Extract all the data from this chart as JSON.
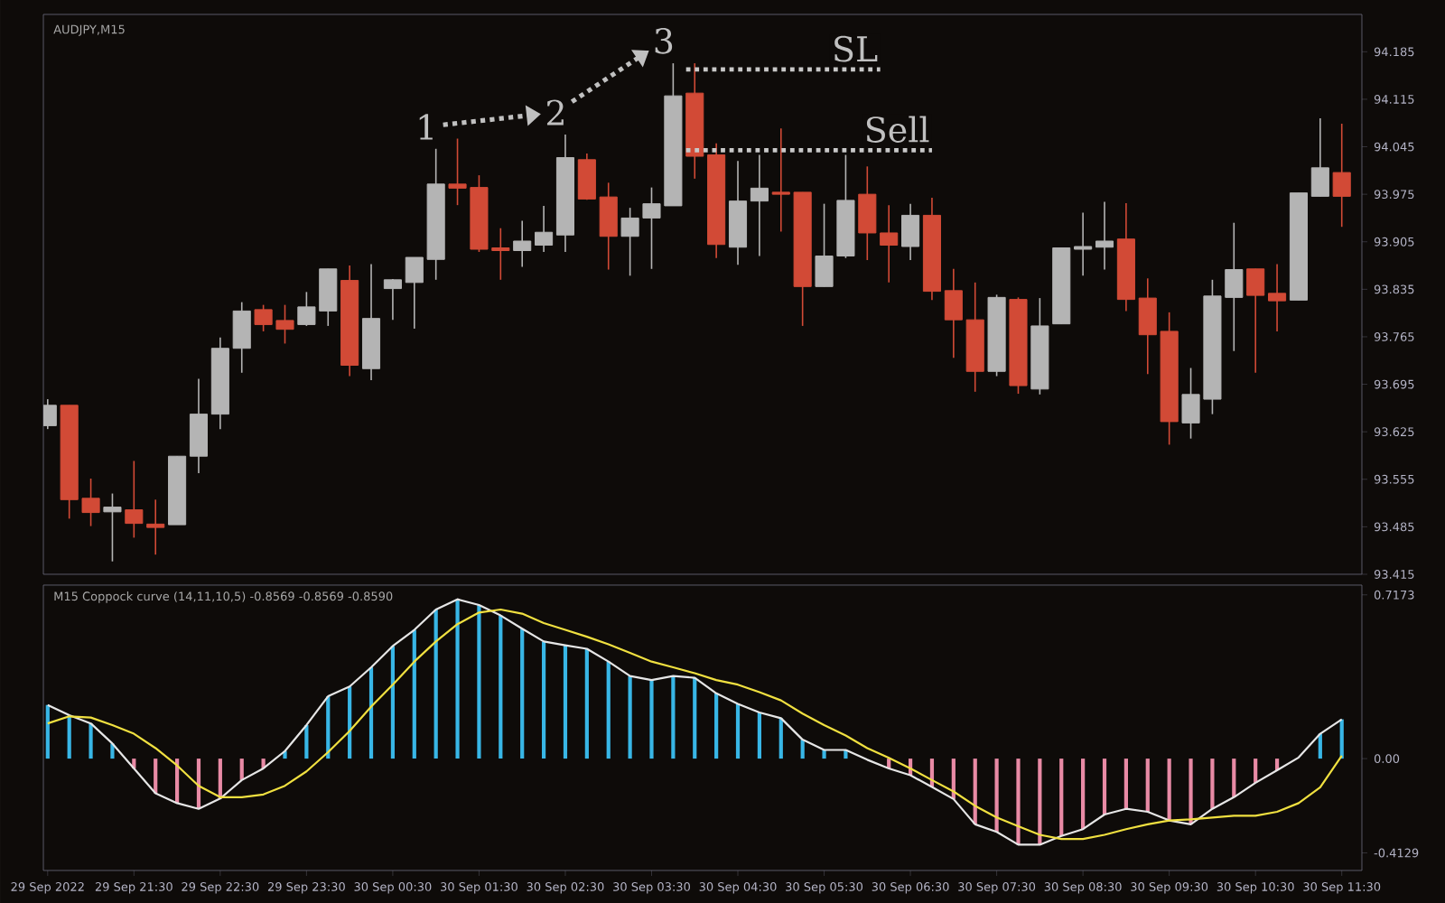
{
  "chart_data": [
    {
      "type": "candlestick",
      "title": "AUDJPY,M15",
      "x": [
        "2022-09-29T20:30",
        "2022-09-29T20:45",
        "2022-09-29T21:00",
        "2022-09-29T21:15",
        "2022-09-29T21:30",
        "2022-09-29T21:45",
        "2022-09-29T22:00",
        "2022-09-29T22:15",
        "2022-09-29T22:30",
        "2022-09-29T22:45",
        "2022-09-29T23:00",
        "2022-09-29T23:15",
        "2022-09-29T23:30",
        "2022-09-29T23:45",
        "2022-09-30T00:00",
        "2022-09-30T00:15",
        "2022-09-30T00:30",
        "2022-09-30T00:45",
        "2022-09-30T01:00",
        "2022-09-30T01:15",
        "2022-09-30T01:30",
        "2022-09-30T01:45",
        "2022-09-30T02:00",
        "2022-09-30T02:15",
        "2022-09-30T02:30",
        "2022-09-30T02:45",
        "2022-09-30T03:00",
        "2022-09-30T03:15",
        "2022-09-30T03:30",
        "2022-09-30T03:45",
        "2022-09-30T04:00",
        "2022-09-30T04:15",
        "2022-09-30T04:30",
        "2022-09-30T04:45",
        "2022-09-30T05:00",
        "2022-09-30T05:15",
        "2022-09-30T05:30",
        "2022-09-30T05:45",
        "2022-09-30T06:00",
        "2022-09-30T06:15",
        "2022-09-30T06:30",
        "2022-09-30T06:45",
        "2022-09-30T07:00",
        "2022-09-30T07:15",
        "2022-09-30T07:30",
        "2022-09-30T07:45",
        "2022-09-30T08:00",
        "2022-09-30T08:15",
        "2022-09-30T08:30",
        "2022-09-30T08:45",
        "2022-09-30T09:00",
        "2022-09-30T09:15",
        "2022-09-30T09:30",
        "2022-09-30T09:45",
        "2022-09-30T10:00",
        "2022-09-30T10:15",
        "2022-09-30T10:30",
        "2022-09-30T10:45",
        "2022-09-30T11:00",
        "2022-09-30T11:15",
        "2022-09-30T11:30"
      ],
      "ohlc": [
        [
          93.634,
          93.673,
          93.629,
          93.664
        ],
        [
          93.664,
          93.664,
          93.497,
          93.525
        ],
        [
          93.527,
          93.556,
          93.486,
          93.506
        ],
        [
          93.507,
          93.534,
          93.434,
          93.514
        ],
        [
          93.51,
          93.582,
          93.469,
          93.49
        ],
        [
          93.489,
          93.525,
          93.444,
          93.484
        ],
        [
          93.488,
          93.589,
          93.488,
          93.589
        ],
        [
          93.589,
          93.703,
          93.564,
          93.651
        ],
        [
          93.651,
          93.764,
          93.629,
          93.748
        ],
        [
          93.748,
          93.816,
          93.712,
          93.803
        ],
        [
          93.805,
          93.812,
          93.773,
          93.783
        ],
        [
          93.789,
          93.812,
          93.755,
          93.776
        ],
        [
          93.783,
          93.831,
          93.781,
          93.809
        ],
        [
          93.803,
          93.865,
          93.781,
          93.865
        ],
        [
          93.848,
          93.87,
          93.707,
          93.723
        ],
        [
          93.718,
          93.872,
          93.701,
          93.792
        ],
        [
          93.836,
          93.85,
          93.79,
          93.849
        ],
        [
          93.845,
          93.882,
          93.777,
          93.882
        ],
        [
          93.879,
          94.042,
          93.849,
          93.99
        ],
        [
          93.99,
          94.057,
          93.959,
          93.984
        ],
        [
          93.985,
          94.003,
          93.89,
          93.894
        ],
        [
          93.896,
          93.925,
          93.849,
          93.892
        ],
        [
          93.892,
          93.936,
          93.868,
          93.906
        ],
        [
          93.9,
          93.958,
          93.89,
          93.919
        ],
        [
          93.915,
          94.063,
          93.89,
          94.029
        ],
        [
          94.026,
          94.035,
          93.967,
          93.968
        ],
        [
          93.971,
          93.992,
          93.864,
          93.913
        ],
        [
          93.913,
          93.955,
          93.855,
          93.94
        ],
        [
          93.94,
          93.985,
          93.865,
          93.961
        ],
        [
          93.958,
          94.168,
          93.958,
          94.12
        ],
        [
          94.124,
          94.168,
          93.998,
          94.031
        ],
        [
          94.033,
          94.05,
          93.881,
          93.901
        ],
        [
          93.897,
          94.024,
          93.871,
          93.965
        ],
        [
          93.965,
          94.033,
          93.884,
          93.984
        ],
        [
          93.978,
          94.072,
          93.92,
          93.975
        ],
        [
          93.978,
          93.978,
          93.781,
          93.839
        ],
        [
          93.839,
          93.961,
          93.839,
          93.884
        ],
        [
          93.884,
          94.033,
          93.881,
          93.966
        ],
        [
          93.975,
          94.016,
          93.878,
          93.918
        ],
        [
          93.918,
          93.959,
          93.845,
          93.9
        ],
        [
          93.898,
          93.961,
          93.878,
          93.944
        ],
        [
          93.944,
          93.97,
          93.819,
          93.832
        ],
        [
          93.833,
          93.865,
          93.734,
          93.79
        ],
        [
          93.79,
          93.845,
          93.684,
          93.714
        ],
        [
          93.714,
          93.827,
          93.707,
          93.823
        ],
        [
          93.82,
          93.823,
          93.681,
          93.693
        ],
        [
          93.688,
          93.822,
          93.68,
          93.781
        ],
        [
          93.784,
          93.896,
          93.784,
          93.896
        ],
        [
          93.894,
          93.948,
          93.855,
          93.898
        ],
        [
          93.897,
          93.964,
          93.864,
          93.906
        ],
        [
          93.909,
          93.962,
          93.803,
          93.82
        ],
        [
          93.822,
          93.851,
          93.71,
          93.768
        ],
        [
          93.773,
          93.801,
          93.606,
          93.64
        ],
        [
          93.638,
          93.719,
          93.615,
          93.68
        ],
        [
          93.673,
          93.849,
          93.651,
          93.825
        ],
        [
          93.823,
          93.933,
          93.744,
          93.864
        ],
        [
          93.865,
          93.865,
          93.712,
          93.826
        ],
        [
          93.829,
          93.872,
          93.773,
          93.818
        ],
        [
          93.819,
          93.977,
          93.819,
          93.977
        ],
        [
          93.972,
          94.087,
          93.972,
          94.014
        ],
        [
          94.007,
          94.079,
          93.927,
          93.972
        ]
      ],
      "colors": [
        "#b4b4b4",
        "#d24a36",
        "#d24a36",
        "#b4b4b4",
        "#d24a36",
        "#d24a36",
        "#b4b4b4",
        "#b4b4b4",
        "#b4b4b4",
        "#b4b4b4",
        "#d24a36",
        "#d24a36",
        "#b4b4b4",
        "#b4b4b4",
        "#d24a36",
        "#b4b4b4",
        "#b4b4b4",
        "#b4b4b4",
        "#b4b4b4",
        "#d24a36",
        "#d24a36",
        "#d24a36",
        "#b4b4b4",
        "#b4b4b4",
        "#b4b4b4",
        "#d24a36",
        "#d24a36",
        "#b4b4b4",
        "#b4b4b4",
        "#b4b4b4",
        "#d24a36",
        "#d24a36",
        "#b4b4b4",
        "#b4b4b4",
        "#d24a36",
        "#d24a36",
        "#b4b4b4",
        "#b4b4b4",
        "#d24a36",
        "#d24a36",
        "#b4b4b4",
        "#d24a36",
        "#d24a36",
        "#d24a36",
        "#b4b4b4",
        "#d24a36",
        "#b4b4b4",
        "#b4b4b4",
        "#b4b4b4",
        "#b4b4b4",
        "#d24a36",
        "#d24a36",
        "#d24a36",
        "#b4b4b4",
        "#b4b4b4",
        "#b4b4b4",
        "#d24a36",
        "#d24a36",
        "#b4b4b4",
        "#b4b4b4",
        "#d24a36"
      ],
      "xlim": [
        "2022-09-29T20:27",
        "2022-09-30T11:44"
      ],
      "ylim": [
        93.415,
        94.24
      ],
      "yticks": [
        93.415,
        93.485,
        93.555,
        93.625,
        93.695,
        93.765,
        93.835,
        93.905,
        93.975,
        94.045,
        94.115,
        94.185
      ],
      "tick_labels": "y",
      "annotations": [
        {
          "text": "1",
          "x": "2022-09-30T01:00",
          "y": 94.042
        },
        {
          "text": "2",
          "x": "2022-09-30T02:30",
          "y": 94.063
        },
        {
          "text": "3",
          "x": "2022-09-30T03:45",
          "y": 94.168
        }
      ],
      "ref_lines": [
        {
          "axis": "y",
          "value": 94.159,
          "label": "SL",
          "color": "#c8c8c8",
          "line_style": "dotted"
        },
        {
          "axis": "y",
          "value": 94.04,
          "label": "Sell",
          "color": "#c8c8c8",
          "line_style": "dotted"
        }
      ]
    },
    {
      "type": "bar",
      "title": "M15 Coppock curve  (14,11,10,5) -0.8569 -0.8569 -0.8590",
      "x": [
        "2022-09-29T20:30",
        "2022-09-29T20:45",
        "2022-09-29T21:00",
        "2022-09-29T21:15",
        "2022-09-29T21:30",
        "2022-09-29T21:45",
        "2022-09-29T22:00",
        "2022-09-29T22:15",
        "2022-09-29T22:30",
        "2022-09-29T22:45",
        "2022-09-29T23:00",
        "2022-09-29T23:15",
        "2022-09-29T23:30",
        "2022-09-29T23:45",
        "2022-09-30T00:00",
        "2022-09-30T00:15",
        "2022-09-30T00:30",
        "2022-09-30T00:45",
        "2022-09-30T01:00",
        "2022-09-30T01:15",
        "2022-09-30T01:30",
        "2022-09-30T01:45",
        "2022-09-30T02:00",
        "2022-09-30T02:15",
        "2022-09-30T02:30",
        "2022-09-30T02:45",
        "2022-09-30T03:00",
        "2022-09-30T03:15",
        "2022-09-30T03:30",
        "2022-09-30T03:45",
        "2022-09-30T04:00",
        "2022-09-30T04:15",
        "2022-09-30T04:30",
        "2022-09-30T04:45",
        "2022-09-30T05:00",
        "2022-09-30T05:15",
        "2022-09-30T05:30",
        "2022-09-30T05:45",
        "2022-09-30T06:00",
        "2022-09-30T06:15",
        "2022-09-30T06:30",
        "2022-09-30T06:45",
        "2022-09-30T07:00",
        "2022-09-30T07:15",
        "2022-09-30T07:30",
        "2022-09-30T07:45",
        "2022-09-30T08:00",
        "2022-09-30T08:15",
        "2022-09-30T08:30",
        "2022-09-30T08:45",
        "2022-09-30T09:00",
        "2022-09-30T09:15",
        "2022-09-30T09:30",
        "2022-09-30T09:45",
        "2022-09-30T10:00",
        "2022-09-30T10:15",
        "2022-09-30T10:30",
        "2022-09-30T10:45",
        "2022-09-30T11:00",
        "2022-09-30T11:15",
        "2022-09-30T11:30"
      ],
      "series": [
        {
          "type": "bar",
          "values": [
            0.235,
            0.19,
            0.154,
            0.066,
            -0.043,
            -0.152,
            -0.195,
            -0.22,
            -0.175,
            -0.094,
            -0.043,
            0.033,
            0.147,
            0.273,
            0.316,
            0.4,
            0.493,
            0.564,
            0.653,
            0.698,
            0.673,
            0.627,
            0.569,
            0.513,
            0.496,
            0.481,
            0.425,
            0.362,
            0.344,
            0.362,
            0.354,
            0.286,
            0.24,
            0.202,
            0.177,
            0.083,
            0.038,
            0.038,
            null,
            -0.043,
            -0.073,
            -0.124,
            -0.177,
            -0.288,
            -0.321,
            -0.377,
            -0.377,
            -0.339,
            -0.309,
            -0.245,
            -0.22,
            -0.233,
            -0.271,
            -0.288,
            -0.22,
            -0.169,
            -0.106,
            -0.051,
            null,
            0.109,
            0.172
          ],
          "colors": [
            "#38b6e6",
            "#38b6e6",
            "#38b6e6",
            "#38b6e6",
            "#e88aa5",
            "#e88aa5",
            "#e88aa5",
            "#e88aa5",
            "#e88aa5",
            "#e88aa5",
            "#e88aa5",
            "#38b6e6",
            "#38b6e6",
            "#38b6e6",
            "#38b6e6",
            "#38b6e6",
            "#38b6e6",
            "#38b6e6",
            "#38b6e6",
            "#38b6e6",
            "#38b6e6",
            "#38b6e6",
            "#38b6e6",
            "#38b6e6",
            "#38b6e6",
            "#38b6e6",
            "#38b6e6",
            "#38b6e6",
            "#38b6e6",
            "#38b6e6",
            "#38b6e6",
            "#38b6e6",
            "#38b6e6",
            "#38b6e6",
            "#38b6e6",
            "#38b6e6",
            "#38b6e6",
            "#38b6e6",
            "#e88aa5",
            "#e88aa5",
            "#e88aa5",
            "#e88aa5",
            "#e88aa5",
            "#e88aa5",
            "#e88aa5",
            "#e88aa5",
            "#e88aa5",
            "#e88aa5",
            "#e88aa5",
            "#e88aa5",
            "#e88aa5",
            "#e88aa5",
            "#e88aa5",
            "#e88aa5",
            "#e88aa5",
            "#e88aa5",
            "#e88aa5",
            "#e88aa5",
            "#38b6e6",
            "#38b6e6",
            "#38b6e6"
          ]
        },
        {
          "type": "line",
          "color": "#e6e6e6",
          "values": [
            0.235,
            0.19,
            0.154,
            0.066,
            -0.043,
            -0.152,
            -0.195,
            -0.22,
            -0.175,
            -0.094,
            -0.043,
            0.033,
            0.147,
            0.273,
            0.316,
            0.4,
            0.493,
            0.564,
            0.653,
            0.698,
            0.673,
            0.627,
            0.569,
            0.513,
            0.496,
            0.481,
            0.425,
            0.362,
            0.344,
            0.362,
            0.354,
            0.286,
            0.24,
            0.202,
            0.177,
            0.083,
            0.038,
            0.038,
            -0.005,
            -0.043,
            -0.073,
            -0.124,
            -0.177,
            -0.288,
            -0.321,
            -0.377,
            -0.377,
            -0.339,
            -0.309,
            -0.245,
            -0.22,
            -0.233,
            -0.271,
            -0.288,
            -0.22,
            -0.169,
            -0.106,
            -0.051,
            0.005,
            0.109,
            0.172
          ]
        },
        {
          "type": "line",
          "color": "#f0e040",
          "values": [
            0.154,
            0.185,
            0.18,
            0.147,
            0.109,
            0.046,
            -0.03,
            -0.119,
            -0.169,
            -0.169,
            -0.157,
            -0.119,
            -0.056,
            0.028,
            0.121,
            0.228,
            0.324,
            0.425,
            0.513,
            0.589,
            0.64,
            0.653,
            0.635,
            0.594,
            0.564,
            0.534,
            0.501,
            0.463,
            0.425,
            0.4,
            0.374,
            0.344,
            0.324,
            0.291,
            0.255,
            0.197,
            0.147,
            0.101,
            0.046,
            0.003,
            -0.043,
            -0.094,
            -0.144,
            -0.207,
            -0.258,
            -0.296,
            -0.334,
            -0.352,
            -0.352,
            -0.334,
            -0.309,
            -0.288,
            -0.271,
            -0.266,
            -0.258,
            -0.25,
            -0.25,
            -0.233,
            -0.195,
            -0.126,
            0.013
          ]
        }
      ],
      "xlim": [
        "2022-09-29T20:27",
        "2022-09-30T11:44"
      ],
      "ylim": [
        -0.49,
        0.76
      ],
      "xticks": [
        {
          "value": "2022-09-29T20:30",
          "label": "29 Sep 2022"
        },
        {
          "value": "2022-09-29T21:30",
          "label": "29 Sep 21:30"
        },
        {
          "value": "2022-09-29T22:30",
          "label": "29 Sep 22:30"
        },
        {
          "value": "2022-09-29T23:30",
          "label": "29 Sep 23:30"
        },
        {
          "value": "2022-09-30T00:30",
          "label": "30 Sep 00:30"
        },
        {
          "value": "2022-09-30T01:30",
          "label": "30 Sep 01:30"
        },
        {
          "value": "2022-09-30T02:30",
          "label": "30 Sep 02:30"
        },
        {
          "value": "2022-09-30T03:30",
          "label": "30 Sep 03:30"
        },
        {
          "value": "2022-09-30T04:30",
          "label": "30 Sep 04:30"
        },
        {
          "value": "2022-09-30T05:30",
          "label": "30 Sep 05:30"
        },
        {
          "value": "2022-09-30T06:30",
          "label": "30 Sep 06:30"
        },
        {
          "value": "2022-09-30T07:30",
          "label": "30 Sep 07:30"
        },
        {
          "value": "2022-09-30T08:30",
          "label": "30 Sep 08:30"
        },
        {
          "value": "2022-09-30T09:30",
          "label": "30 Sep 09:30"
        },
        {
          "value": "2022-09-30T10:30",
          "label": "30 Sep 10:30"
        },
        {
          "value": "2022-09-30T11:30",
          "label": "30 Sep 11:30"
        }
      ],
      "yticks": [
        {
          "value": 0.7173,
          "label": "0.7173"
        },
        {
          "value": 0,
          "label": "0.00"
        },
        {
          "value": -0.4129,
          "label": "-0.4129"
        }
      ]
    }
  ]
}
